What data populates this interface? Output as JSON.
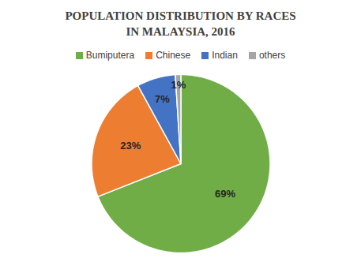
{
  "chart_data": {
    "type": "pie",
    "title": "POPULATION DISTRIBUTION BY RACES IN MALAYSIA, 2016",
    "categories": [
      "Bumiputera",
      "Chinese",
      "Indian",
      "others"
    ],
    "values": [
      69,
      23,
      7,
      1
    ],
    "value_labels": [
      "69%",
      "23%",
      "7%",
      "1%"
    ],
    "colors": [
      "#70ad47",
      "#ed7d31",
      "#4472c4",
      "#a5a5a5"
    ],
    "data_labels": true,
    "legend": "top"
  }
}
